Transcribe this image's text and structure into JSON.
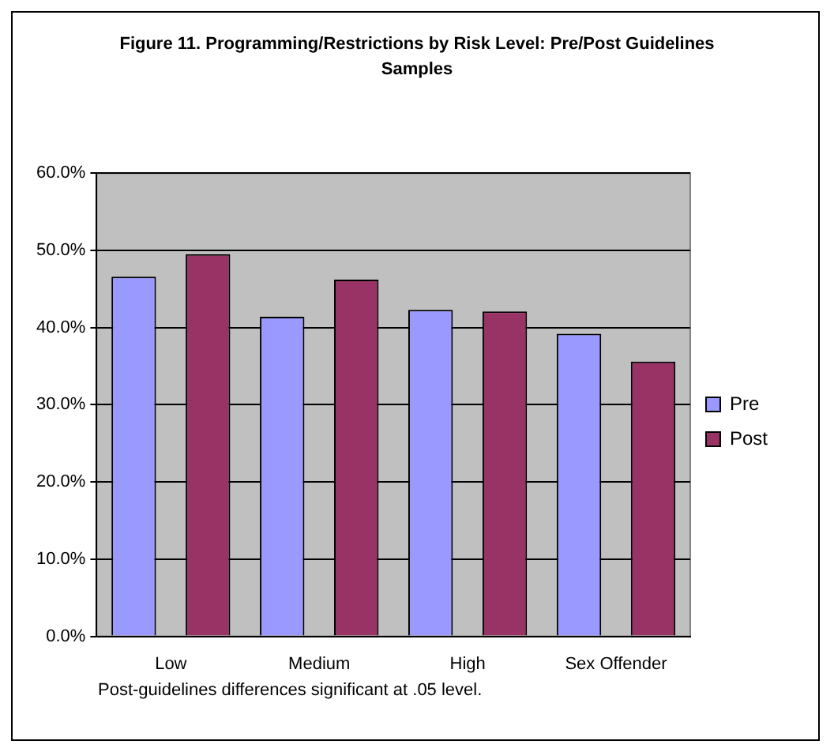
{
  "chart_data": {
    "type": "bar",
    "title": "Figure 11. Programming/Restrictions by Risk Level: Pre/Post Guidelines Samples",
    "categories": [
      "Low",
      "Medium",
      "High",
      "Sex Offender"
    ],
    "series": [
      {
        "name": "Pre",
        "color": "#9999ff",
        "values": [
          46.6,
          41.4,
          42.3,
          39.2
        ]
      },
      {
        "name": "Post",
        "color": "#993366",
        "values": [
          49.5,
          46.2,
          42.1,
          35.6
        ]
      }
    ],
    "ylim": [
      0,
      60
    ],
    "yticks": [
      {
        "value": 0,
        "label": "0.0%"
      },
      {
        "value": 10,
        "label": "10.0%"
      },
      {
        "value": 20,
        "label": "20.0%"
      },
      {
        "value": 30,
        "label": "30.0%"
      },
      {
        "value": 40,
        "label": "40.0%"
      },
      {
        "value": 50,
        "label": "50.0%"
      },
      {
        "value": 60,
        "label": "60.0%"
      }
    ],
    "grid": "y",
    "legend": "right",
    "annotations": [
      "Post-guidelines differences significant at .05 level."
    ]
  }
}
